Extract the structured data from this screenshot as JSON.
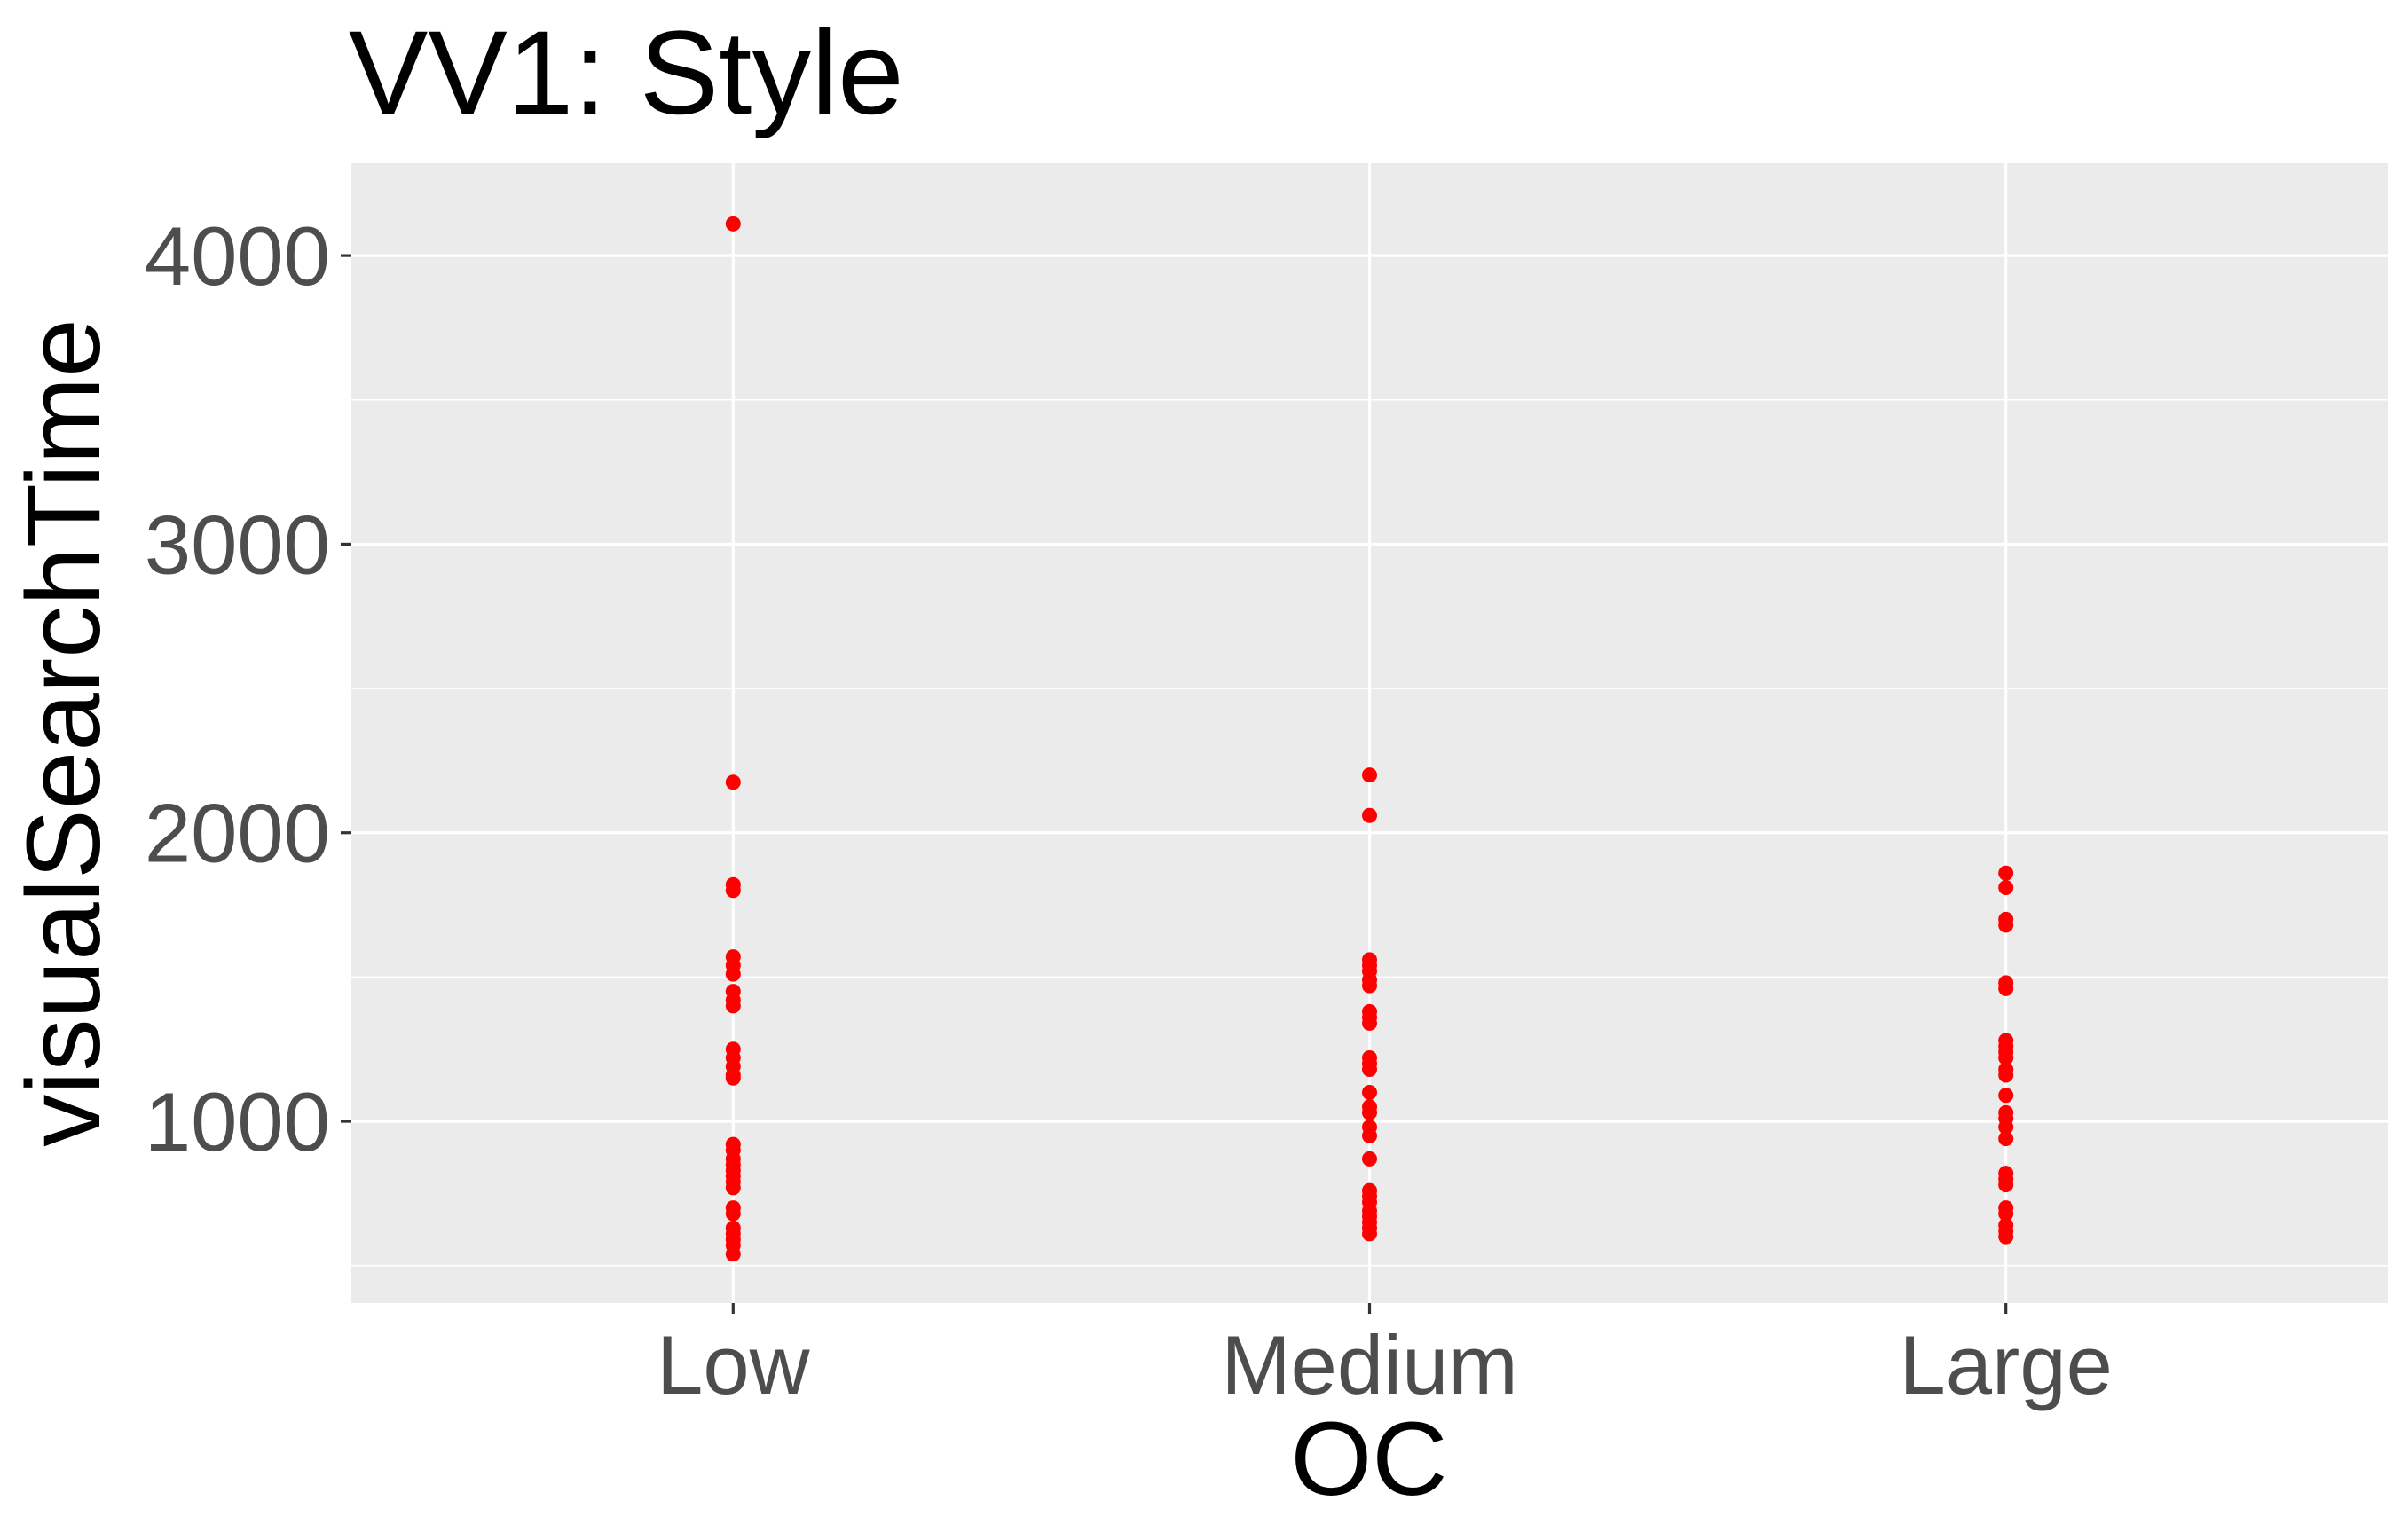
{
  "chart_data": {
    "type": "scatter",
    "title": "VV1: Style",
    "xlabel": "OC",
    "ylabel": "visualSearchTime",
    "categories": [
      "Low",
      "Medium",
      "Large"
    ],
    "y_ticks": [
      1000,
      2000,
      3000,
      4000
    ],
    "y_tick_labels": [
      "1000",
      "2000",
      "3000",
      "4000"
    ],
    "ylim": [
      370,
      4320
    ],
    "grid": true,
    "legend": "none",
    "colors": {
      "panel_background": "#ebebeb",
      "grid": "#ffffff",
      "point": "#ff0000",
      "tick_label": "#4d4d4d",
      "title": "#000000"
    },
    "series": [
      {
        "values": {
          "Low": [
            4110,
            2175,
            1820,
            1800,
            1570,
            1540,
            1510,
            1450,
            1420,
            1400,
            1250,
            1220,
            1190,
            1160,
            1150,
            920,
            900,
            870,
            850,
            830,
            810,
            790,
            770,
            700,
            680,
            630,
            610,
            590,
            570,
            540
          ],
          "Medium": [
            2200,
            2060,
            1560,
            1540,
            1520,
            1490,
            1470,
            1380,
            1360,
            1340,
            1220,
            1200,
            1180,
            1100,
            1050,
            1030,
            980,
            950,
            870,
            760,
            740,
            720,
            690,
            670,
            650,
            630,
            610
          ],
          "Large": [
            1860,
            1810,
            1700,
            1680,
            1480,
            1460,
            1280,
            1260,
            1240,
            1220,
            1180,
            1160,
            1090,
            1030,
            1010,
            980,
            940,
            820,
            800,
            780,
            700,
            680,
            640,
            620,
            600
          ]
        }
      }
    ]
  }
}
